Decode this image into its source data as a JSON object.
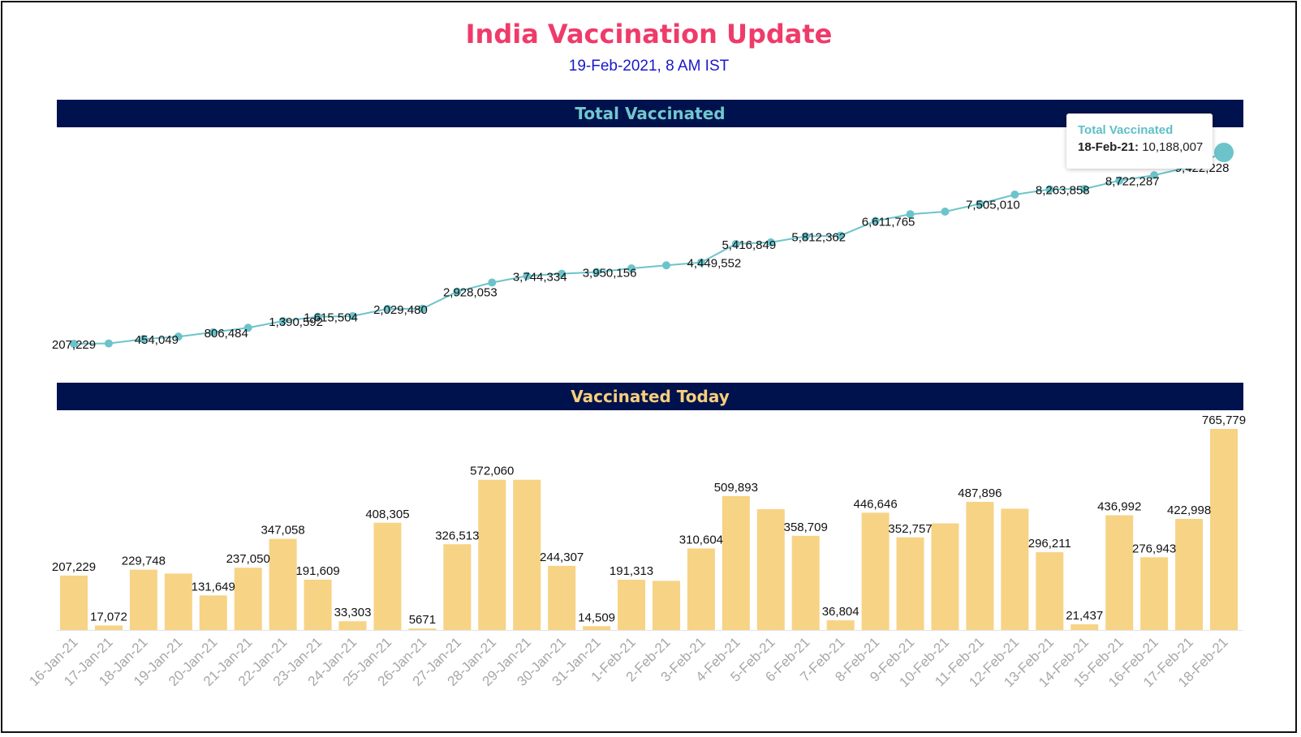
{
  "header": {
    "title": "India Vaccination Update",
    "subtitle": "19-Feb-2021, 8 AM IST"
  },
  "colors": {
    "title": "#ef3b6a",
    "subtitle": "#1a18c9",
    "section_bar_bg": "#00124d",
    "line_series": "#6cc4ca",
    "bar_series": "#f7d385"
  },
  "tooltip": {
    "series": "Total Vaccinated",
    "date": "18-Feb-21:",
    "value": "10,188,007"
  },
  "chart_data": [
    {
      "type": "line",
      "title": "Total Vaccinated",
      "x": [
        "16-Jan-21",
        "17-Jan-21",
        "18-Jan-21",
        "19-Jan-21",
        "20-Jan-21",
        "21-Jan-21",
        "22-Jan-21",
        "23-Jan-21",
        "24-Jan-21",
        "25-Jan-21",
        "26-Jan-21",
        "27-Jan-21",
        "28-Jan-21",
        "29-Jan-21",
        "30-Jan-21",
        "31-Jan-21",
        "1-Feb-21",
        "2-Feb-21",
        "3-Feb-21",
        "4-Feb-21",
        "5-Feb-21",
        "6-Feb-21",
        "7-Feb-21",
        "8-Feb-21",
        "9-Feb-21",
        "10-Feb-21",
        "11-Feb-21",
        "12-Feb-21",
        "13-Feb-21",
        "14-Feb-21",
        "15-Feb-21",
        "16-Feb-21",
        "17-Feb-21",
        "18-Feb-21"
      ],
      "values": [
        207229,
        224301,
        454049,
        580000,
        806484,
        1043534,
        1390592,
        1615504,
        1648807,
        2029480,
        2035151,
        2928053,
        3400000,
        3744334,
        3860000,
        3950156,
        4141469,
        4300000,
        4449552,
        5416849,
        5500000,
        5812362,
        5849166,
        6611765,
        6964522,
        7100000,
        7505010,
        7990000,
        8263858,
        8285295,
        8722287,
        8999230,
        9422228,
        10188007
      ],
      "data_labels": [
        {
          "index": 0,
          "text": "207,229"
        },
        {
          "index": 2,
          "text": "454,049"
        },
        {
          "index": 4,
          "text": "806,484"
        },
        {
          "index": 6,
          "text": "1,390,592"
        },
        {
          "index": 7,
          "text": "1,615,504"
        },
        {
          "index": 9,
          "text": "2,029,480"
        },
        {
          "index": 11,
          "text": "2,928,053"
        },
        {
          "index": 13,
          "text": "3,744,334"
        },
        {
          "index": 15,
          "text": "3,950,156"
        },
        {
          "index": 18,
          "text": "4,449,552"
        },
        {
          "index": 19,
          "text": "5,416,849"
        },
        {
          "index": 21,
          "text": "5,812,362"
        },
        {
          "index": 23,
          "text": "6,611,765"
        },
        {
          "index": 26,
          "text": "7,505,010"
        },
        {
          "index": 28,
          "text": "8,263,858"
        },
        {
          "index": 30,
          "text": "8,722,287"
        },
        {
          "index": 32,
          "text": "9,422,228"
        }
      ]
    },
    {
      "type": "bar",
      "title": "Vaccinated Today",
      "categories": [
        "16-Jan-21",
        "17-Jan-21",
        "18-Jan-21",
        "19-Jan-21",
        "20-Jan-21",
        "21-Jan-21",
        "22-Jan-21",
        "23-Jan-21",
        "24-Jan-21",
        "25-Jan-21",
        "26-Jan-21",
        "27-Jan-21",
        "28-Jan-21",
        "29-Jan-21",
        "30-Jan-21",
        "31-Jan-21",
        "1-Feb-21",
        "2-Feb-21",
        "3-Feb-21",
        "4-Feb-21",
        "5-Feb-21",
        "6-Feb-21",
        "7-Feb-21",
        "8-Feb-21",
        "9-Feb-21",
        "10-Feb-21",
        "11-Feb-21",
        "12-Feb-21",
        "13-Feb-21",
        "14-Feb-21",
        "15-Feb-21",
        "16-Feb-21",
        "17-Feb-21",
        "18-Feb-21"
      ],
      "values": [
        207229,
        17072,
        229748,
        215000,
        131649,
        237050,
        347058,
        191609,
        33303,
        408305,
        5671,
        326513,
        572060,
        572060,
        244307,
        14509,
        191313,
        187000,
        310604,
        509893,
        460000,
        358709,
        36804,
        446646,
        352757,
        406000,
        487896,
        462000,
        296211,
        21437,
        436992,
        276943,
        422998,
        765779
      ],
      "data_labels": [
        {
          "index": 0,
          "text": "207,229"
        },
        {
          "index": 1,
          "text": "17,072"
        },
        {
          "index": 2,
          "text": "229,748"
        },
        {
          "index": 4,
          "text": "131,649"
        },
        {
          "index": 5,
          "text": "237,050"
        },
        {
          "index": 6,
          "text": "347,058"
        },
        {
          "index": 7,
          "text": "191,609"
        },
        {
          "index": 8,
          "text": "33,303"
        },
        {
          "index": 9,
          "text": "408,305"
        },
        {
          "index": 10,
          "text": "5671"
        },
        {
          "index": 11,
          "text": "326,513"
        },
        {
          "index": 12,
          "text": "572,060"
        },
        {
          "index": 14,
          "text": "244,307"
        },
        {
          "index": 15,
          "text": "14,509"
        },
        {
          "index": 16,
          "text": "191,313"
        },
        {
          "index": 18,
          "text": "310,604"
        },
        {
          "index": 19,
          "text": "509,893"
        },
        {
          "index": 21,
          "text": "358,709"
        },
        {
          "index": 22,
          "text": "36,804"
        },
        {
          "index": 23,
          "text": "446,646"
        },
        {
          "index": 24,
          "text": "352,757"
        },
        {
          "index": 26,
          "text": "487,896"
        },
        {
          "index": 28,
          "text": "296,211"
        },
        {
          "index": 29,
          "text": "21,437"
        },
        {
          "index": 30,
          "text": "436,992"
        },
        {
          "index": 31,
          "text": "276,943"
        },
        {
          "index": 32,
          "text": "422,998"
        },
        {
          "index": 33,
          "text": "765,779"
        }
      ]
    }
  ]
}
